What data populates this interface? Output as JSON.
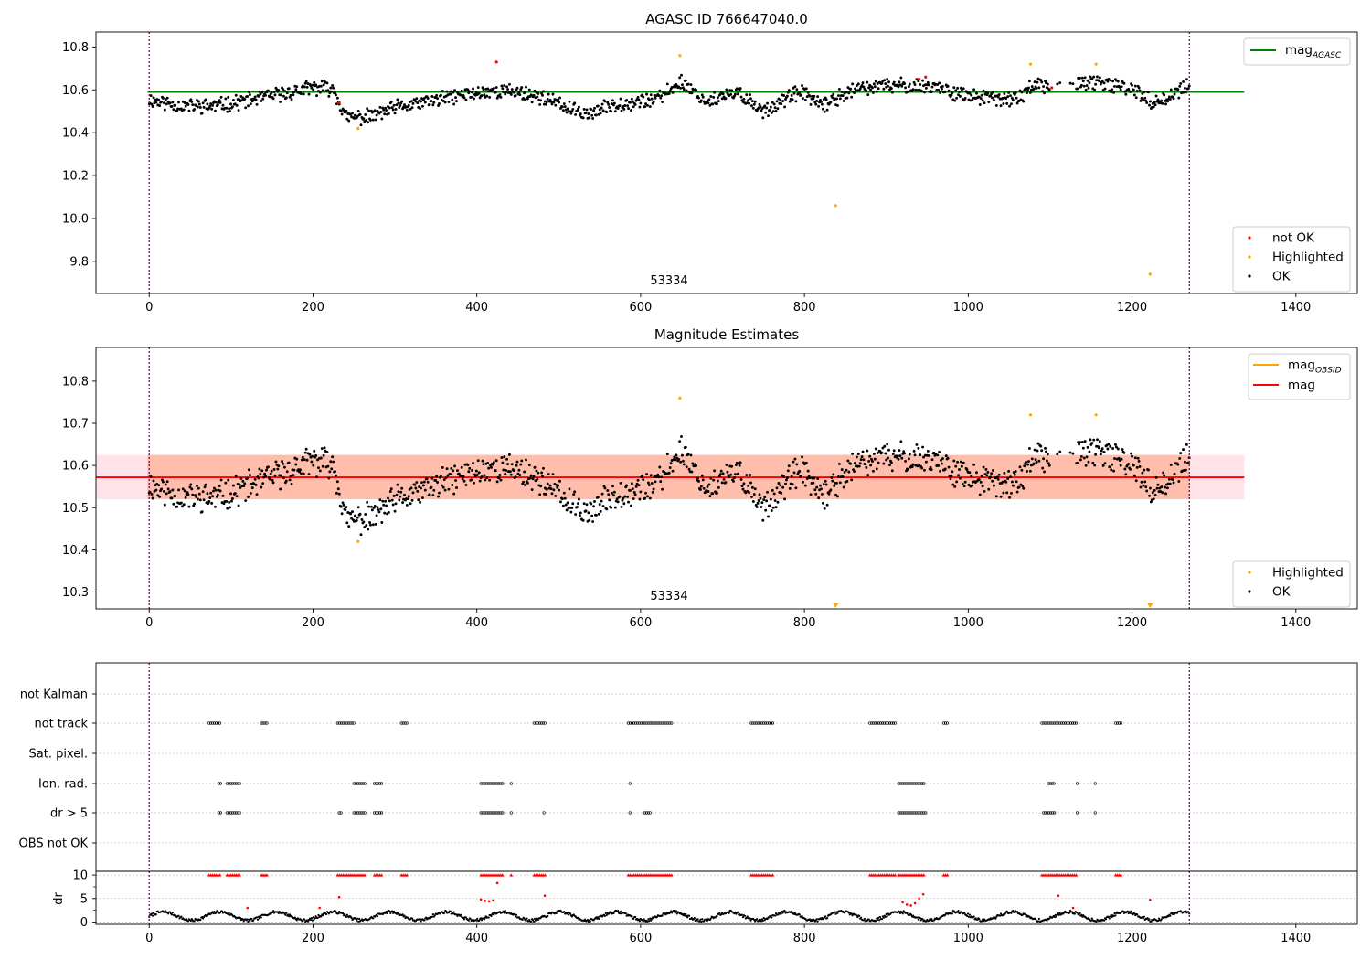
{
  "figure": {
    "background": "#ffffff",
    "colors": {
      "ok": "#000000",
      "not_ok": "#ff0000",
      "highlighted": "#ffa500",
      "agasc_line": "#008000",
      "obsid_line": "#ffa500",
      "mag_line": "#ff0000",
      "mag_band": "#ffc0cb",
      "obsid_band": "#ffa07a",
      "obs_boundary": "#800080"
    }
  },
  "chart_data": [
    {
      "type": "scatter",
      "title": "AGASC ID 766647040.0",
      "xlim": [
        -65,
        1475
      ],
      "ylim": [
        9.65,
        10.87
      ],
      "xticks": [
        0,
        200,
        400,
        600,
        800,
        1000,
        1200,
        1400
      ],
      "yticks": [
        9.8,
        10.0,
        10.2,
        10.4,
        10.6,
        10.8
      ],
      "obs_boundaries": [
        0,
        1270
      ],
      "obsid_annotation": {
        "text": "53334",
        "x": 635,
        "y": 9.67
      },
      "reference_lines": [
        {
          "name": "mag_AGASC",
          "name_main": "mag",
          "name_sub": "AGASC",
          "value": 10.59,
          "xmin": -2,
          "xmax": 1337,
          "color": "#008000"
        }
      ],
      "legend_top": {
        "position": "upper right",
        "entries": [
          {
            "main": "mag",
            "sub": "AGASC",
            "color": "#008000",
            "kind": "line"
          }
        ]
      },
      "legend_bottom": {
        "position": "lower right",
        "entries": [
          {
            "label": "not OK",
            "color": "#ff0000",
            "kind": "point"
          },
          {
            "label": "Highlighted",
            "color": "#ffa500",
            "kind": "point"
          },
          {
            "label": "OK",
            "color": "#000000",
            "kind": "point"
          }
        ]
      },
      "series": [
        {
          "name": "OK",
          "x_range": [
            0,
            1270
          ],
          "approx_count": 1200,
          "model": "ok_track_v1",
          "color": "#000000"
        },
        {
          "name": "not OK",
          "x": [
            232,
            424,
            940,
            948,
            1102
          ],
          "y": [
            10.54,
            10.73,
            10.65,
            10.66,
            10.61
          ],
          "color": "#ff0000"
        },
        {
          "name": "Highlighted",
          "x": [
            255,
            648,
            838,
            1076,
            1156,
            1222
          ],
          "y": [
            10.42,
            10.76,
            10.06,
            10.72,
            10.72,
            9.74
          ],
          "color": "#ffa500"
        }
      ]
    },
    {
      "type": "scatter",
      "title": "Magnitude Estimates",
      "xlim": [
        -65,
        1475
      ],
      "ylim": [
        10.26,
        10.88
      ],
      "xticks": [
        0,
        200,
        400,
        600,
        800,
        1000,
        1200,
        1400
      ],
      "yticks": [
        10.3,
        10.4,
        10.5,
        10.6,
        10.7,
        10.8
      ],
      "obs_boundaries": [
        0,
        1270
      ],
      "obsid_annotation": {
        "text": "53334",
        "x": 635,
        "y": 10.275
      },
      "mag": {
        "value": 10.572,
        "band": [
          10.52,
          10.625
        ],
        "xmin": -65,
        "xmax": 1337
      },
      "mag_obsid": {
        "value": 10.572,
        "band": [
          10.52,
          10.625
        ],
        "xmin": -2,
        "xmax": 1270
      },
      "legend_top": {
        "position": "upper right",
        "entries": [
          {
            "main": "mag",
            "sub": "OBSID",
            "color": "#ffa500",
            "kind": "line"
          },
          {
            "main": "mag",
            "sub": "",
            "color": "#ff0000",
            "kind": "line"
          }
        ]
      },
      "legend_bottom": {
        "position": "lower right",
        "entries": [
          {
            "label": "Highlighted",
            "color": "#ffa500",
            "kind": "point"
          },
          {
            "label": "OK",
            "color": "#000000",
            "kind": "point"
          }
        ]
      },
      "series": [
        {
          "name": "OK",
          "x_range": [
            0,
            1270
          ],
          "approx_count": 1200,
          "model": "ok_track_v1",
          "color": "#000000"
        },
        {
          "name": "Highlighted",
          "x": [
            255,
            648,
            1076,
            1156
          ],
          "y": [
            10.42,
            10.76,
            10.72,
            10.72
          ],
          "color": "#ffa500"
        },
        {
          "name": "Highlighted (below axis)",
          "x": [
            838,
            1222
          ],
          "y": [
            10.265,
            10.265
          ],
          "marker": "triangle-down",
          "color": "#ffa500"
        }
      ]
    },
    {
      "type": "scatter",
      "title": "",
      "xlim": [
        -65,
        1475
      ],
      "xticks": [
        0,
        200,
        400,
        600,
        800,
        1000,
        1200,
        1400
      ],
      "obs_boundaries": [
        0,
        1270
      ],
      "flag_rows": [
        "not Kalman",
        "not track",
        "Sat. pixel.",
        "Ion. rad.",
        "dr > 5",
        "OBS not OK"
      ],
      "flag_segments": {
        "not Kalman": [],
        "not track": [
          [
            73,
            88
          ],
          [
            137,
            144
          ],
          [
            230,
            250
          ],
          [
            308,
            315
          ],
          [
            470,
            485
          ],
          [
            585,
            640
          ],
          [
            735,
            762
          ],
          [
            880,
            912
          ],
          [
            970,
            976
          ],
          [
            1090,
            1133
          ],
          [
            1180,
            1188
          ]
        ],
        "Sat. pixel.": [],
        "Ion. rad.": [
          [
            85,
            88
          ],
          [
            95,
            112
          ],
          [
            250,
            265
          ],
          [
            275,
            285
          ],
          [
            405,
            432
          ],
          [
            442,
            444
          ],
          [
            587,
            589
          ],
          [
            915,
            948
          ],
          [
            1098,
            1105
          ],
          [
            1133,
            1135
          ],
          [
            1155,
            1157
          ]
        ],
        "dr > 5": [
          [
            85,
            88
          ],
          [
            95,
            112
          ],
          [
            232,
            236
          ],
          [
            250,
            265
          ],
          [
            275,
            285
          ],
          [
            405,
            432
          ],
          [
            442,
            444
          ],
          [
            482,
            484
          ],
          [
            587,
            589
          ],
          [
            605,
            612
          ],
          [
            915,
            950
          ],
          [
            1092,
            1106
          ],
          [
            1133,
            1135
          ],
          [
            1155,
            1157
          ]
        ],
        "OBS not OK": []
      },
      "dr": {
        "ylabel": "dr",
        "ylim": [
          -0.5,
          10.8
        ],
        "yticks": [
          0,
          5,
          10
        ],
        "minor_yticks": [
          2.5,
          7.5
        ],
        "clip_value": 10,
        "baseline_model": "dr_track_v1",
        "flagged_segments": [
          [
            73,
            88
          ],
          [
            95,
            112
          ],
          [
            137,
            144
          ],
          [
            230,
            265
          ],
          [
            275,
            285
          ],
          [
            308,
            315
          ],
          [
            405,
            432
          ],
          [
            442,
            444
          ],
          [
            470,
            485
          ],
          [
            585,
            640
          ],
          [
            735,
            762
          ],
          [
            880,
            912
          ],
          [
            915,
            948
          ],
          [
            970,
            976
          ],
          [
            1090,
            1133
          ],
          [
            1180,
            1188
          ]
        ],
        "flagged_points": {
          "x": [
            120,
            208,
            232,
            405,
            410,
            415,
            420,
            425,
            483,
            920,
            925,
            930,
            935,
            940,
            945,
            1110,
            1128,
            1222
          ],
          "y": [
            3.0,
            3.0,
            5.3,
            4.8,
            4.5,
            4.4,
            4.6,
            8.3,
            5.6,
            4.2,
            3.7,
            3.5,
            4.0,
            5.0,
            5.9,
            5.6,
            3.0,
            4.7
          ]
        }
      },
      "legend_top": {
        "entries": []
      },
      "legend_bottom": {
        "entries": []
      }
    }
  ]
}
